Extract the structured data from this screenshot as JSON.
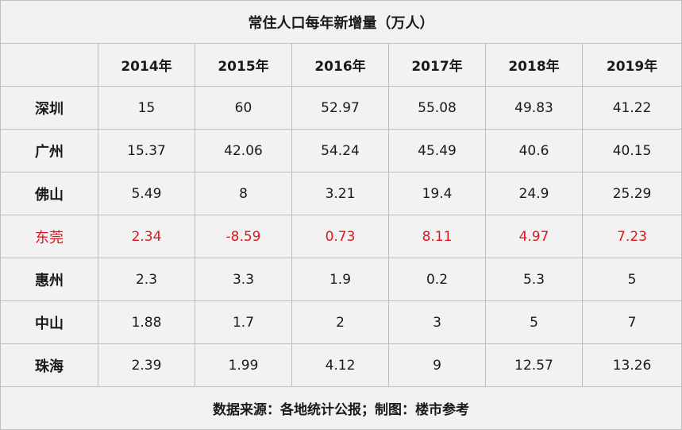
{
  "title": "常住人口每年新增量（万人）",
  "header": {
    "corner": "",
    "years": [
      "2014年",
      "2015年",
      "2016年",
      "2017年",
      "2018年",
      "2019年"
    ]
  },
  "rows": [
    {
      "city": "深圳",
      "values": [
        "15",
        "60",
        "52.97",
        "55.08",
        "49.83",
        "41.22"
      ]
    },
    {
      "city": "广州",
      "values": [
        "15.37",
        "42.06",
        "54.24",
        "45.49",
        "40.6",
        "40.15"
      ]
    },
    {
      "city": "佛山",
      "values": [
        "5.49",
        "8",
        "3.21",
        "19.4",
        "24.9",
        "25.29"
      ]
    },
    {
      "city": "东莞",
      "values": [
        "2.34",
        "-8.59",
        "0.73",
        "8.11",
        "4.97",
        "7.23"
      ]
    },
    {
      "city": "惠州",
      "values": [
        "2.3",
        "3.3",
        "1.9",
        "0.2",
        "5.3",
        "5"
      ]
    },
    {
      "city": "中山",
      "values": [
        "1.88",
        "1.7",
        "2",
        "3",
        "5",
        "7"
      ]
    },
    {
      "city": "珠海",
      "values": [
        "2.39",
        "1.99",
        "4.12",
        "9",
        "12.57",
        "13.26"
      ]
    }
  ],
  "highlight_color": "#e0161e",
  "footer": "数据来源：各地统计公报；制图：楼市参考"
}
